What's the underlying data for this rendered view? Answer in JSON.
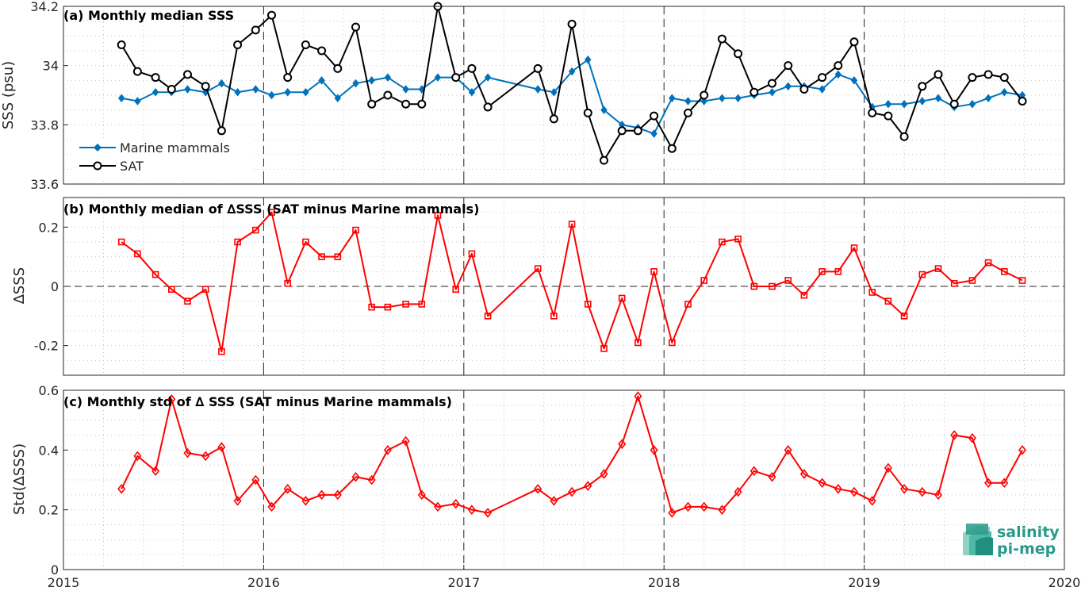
{
  "chart_data": [
    {
      "type": "line",
      "title": "(a) Monthly median SSS",
      "xlabel": "",
      "ylabel": "SSS (psu)",
      "xlim": [
        2015,
        2020
      ],
      "ylim": [
        33.6,
        34.2
      ],
      "xticks": [
        "2015",
        "2016",
        "2017",
        "2018",
        "2019",
        "2020"
      ],
      "yticks": [
        "33.6",
        "33.8",
        "34",
        "34.2"
      ],
      "grid": true,
      "legend_position": "bottom-left",
      "series": [
        {
          "name": "Marine mammals",
          "color": "#0072bd",
          "marker": "diamond",
          "x": [
            2015.29,
            2015.37,
            2015.46,
            2015.54,
            2015.62,
            2015.71,
            2015.79,
            2015.87,
            2015.96,
            2016.04,
            2016.12,
            2016.21,
            2016.29,
            2016.37,
            2016.46,
            2016.54,
            2016.62,
            2016.71,
            2016.79,
            2016.87,
            2016.96,
            2017.04,
            2017.12,
            2017.37,
            2017.45,
            2017.54,
            2017.62,
            2017.7,
            2017.79,
            2017.87,
            2017.95,
            2018.04,
            2018.12,
            2018.2,
            2018.29,
            2018.37,
            2018.45,
            2018.54,
            2018.62,
            2018.7,
            2018.79,
            2018.87,
            2018.95,
            2019.04,
            2019.12,
            2019.2,
            2019.29,
            2019.37,
            2019.45,
            2019.54,
            2019.62,
            2019.7,
            2019.79
          ],
          "y": [
            33.89,
            33.88,
            33.91,
            33.91,
            33.92,
            33.91,
            33.94,
            33.91,
            33.92,
            33.9,
            33.91,
            33.91,
            33.95,
            33.89,
            33.94,
            33.95,
            33.96,
            33.92,
            33.92,
            33.96,
            33.96,
            33.91,
            33.96,
            33.92,
            33.91,
            33.98,
            34.02,
            33.85,
            33.8,
            33.79,
            33.77,
            33.89,
            33.88,
            33.88,
            33.89,
            33.89,
            33.9,
            33.91,
            33.93,
            33.93,
            33.92,
            33.97,
            33.95,
            33.86,
            33.87,
            33.87,
            33.88,
            33.89,
            33.86,
            33.87,
            33.89,
            33.91,
            33.9
          ]
        },
        {
          "name": "SAT",
          "color": "#000000",
          "marker": "circle",
          "x": [
            2015.29,
            2015.37,
            2015.46,
            2015.54,
            2015.62,
            2015.71,
            2015.79,
            2015.87,
            2015.96,
            2016.04,
            2016.12,
            2016.21,
            2016.29,
            2016.37,
            2016.46,
            2016.54,
            2016.62,
            2016.71,
            2016.79,
            2016.87,
            2016.96,
            2017.04,
            2017.12,
            2017.37,
            2017.45,
            2017.54,
            2017.62,
            2017.7,
            2017.79,
            2017.87,
            2017.95,
            2018.04,
            2018.12,
            2018.2,
            2018.29,
            2018.37,
            2018.45,
            2018.54,
            2018.62,
            2018.7,
            2018.79,
            2018.87,
            2018.95,
            2019.04,
            2019.12,
            2019.2,
            2019.29,
            2019.37,
            2019.45,
            2019.54,
            2019.62,
            2019.7,
            2019.79
          ],
          "y": [
            34.07,
            33.98,
            33.96,
            33.92,
            33.97,
            33.93,
            33.78,
            34.07,
            34.12,
            34.17,
            33.96,
            34.07,
            34.05,
            33.99,
            34.13,
            33.87,
            33.9,
            33.87,
            33.87,
            34.2,
            33.96,
            33.99,
            33.86,
            33.99,
            33.82,
            34.14,
            33.84,
            33.68,
            33.78,
            33.78,
            33.83,
            33.72,
            33.84,
            33.9,
            34.09,
            34.04,
            33.91,
            33.94,
            34.0,
            33.92,
            33.96,
            34.0,
            34.08,
            33.84,
            33.83,
            33.76,
            33.93,
            33.97,
            33.87,
            33.96,
            33.97,
            33.96,
            33.88
          ]
        }
      ]
    },
    {
      "type": "line",
      "title": "(b) Monthly median of ∆SSS (SAT minus Marine mammals)",
      "xlabel": "",
      "ylabel": "∆SSS",
      "xlim": [
        2015,
        2020
      ],
      "ylim": [
        -0.3,
        0.3
      ],
      "yticks": [
        "-0.2",
        "0",
        "0.2"
      ],
      "grid": true,
      "series": [
        {
          "color": "#ff0000",
          "marker": "square",
          "x": [
            2015.29,
            2015.37,
            2015.46,
            2015.54,
            2015.62,
            2015.71,
            2015.79,
            2015.87,
            2015.96,
            2016.04,
            2016.12,
            2016.21,
            2016.29,
            2016.37,
            2016.46,
            2016.54,
            2016.62,
            2016.71,
            2016.79,
            2016.87,
            2016.96,
            2017.04,
            2017.12,
            2017.37,
            2017.45,
            2017.54,
            2017.62,
            2017.7,
            2017.79,
            2017.87,
            2017.95,
            2018.04,
            2018.12,
            2018.2,
            2018.29,
            2018.37,
            2018.45,
            2018.54,
            2018.62,
            2018.7,
            2018.79,
            2018.87,
            2018.95,
            2019.04,
            2019.12,
            2019.2,
            2019.29,
            2019.37,
            2019.45,
            2019.54,
            2019.62,
            2019.7,
            2019.79
          ],
          "y": [
            0.15,
            0.11,
            0.04,
            -0.01,
            -0.05,
            -0.01,
            -0.22,
            0.15,
            0.19,
            0.25,
            0.01,
            0.15,
            0.1,
            0.1,
            0.19,
            -0.07,
            -0.07,
            -0.06,
            -0.06,
            0.24,
            -0.01,
            0.11,
            -0.1,
            0.06,
            -0.1,
            0.21,
            -0.06,
            -0.21,
            -0.04,
            -0.19,
            0.05,
            -0.19,
            -0.06,
            0.02,
            0.15,
            0.16,
            0.0,
            0.0,
            0.02,
            -0.03,
            0.05,
            0.05,
            0.13,
            -0.02,
            -0.05,
            -0.1,
            0.04,
            0.06,
            0.01,
            0.02,
            0.08,
            0.05,
            0.02
          ]
        }
      ]
    },
    {
      "type": "line",
      "title": "(c) Monthly std of ∆ SSS (SAT minus Marine mammals)",
      "xlabel": "",
      "ylabel": "Std(∆SSS)",
      "xlim": [
        2015,
        2020
      ],
      "ylim": [
        0,
        0.6
      ],
      "xticks": [
        "2015",
        "2016",
        "2017",
        "2018",
        "2019",
        "2020"
      ],
      "yticks": [
        "0",
        "0.2",
        "0.4",
        "0.6"
      ],
      "grid": true,
      "series": [
        {
          "color": "#ff0000",
          "marker": "diamond",
          "x": [
            2015.29,
            2015.37,
            2015.46,
            2015.54,
            2015.62,
            2015.71,
            2015.79,
            2015.87,
            2015.96,
            2016.04,
            2016.12,
            2016.21,
            2016.29,
            2016.37,
            2016.46,
            2016.54,
            2016.62,
            2016.71,
            2016.79,
            2016.87,
            2016.96,
            2017.04,
            2017.12,
            2017.37,
            2017.45,
            2017.54,
            2017.62,
            2017.7,
            2017.79,
            2017.87,
            2017.95,
            2018.04,
            2018.12,
            2018.2,
            2018.29,
            2018.37,
            2018.45,
            2018.54,
            2018.62,
            2018.7,
            2018.79,
            2018.87,
            2018.95,
            2019.04,
            2019.12,
            2019.2,
            2019.29,
            2019.37,
            2019.45,
            2019.54,
            2019.62,
            2019.7,
            2019.79
          ],
          "y": [
            0.27,
            0.38,
            0.33,
            0.57,
            0.39,
            0.38,
            0.41,
            0.23,
            0.3,
            0.21,
            0.27,
            0.23,
            0.25,
            0.25,
            0.31,
            0.3,
            0.4,
            0.43,
            0.25,
            0.21,
            0.22,
            0.2,
            0.19,
            0.27,
            0.23,
            0.26,
            0.28,
            0.32,
            0.42,
            0.58,
            0.4,
            0.19,
            0.21,
            0.21,
            0.2,
            0.26,
            0.33,
            0.31,
            0.4,
            0.32,
            0.29,
            0.27,
            0.26,
            0.23,
            0.34,
            0.27,
            0.26,
            0.25,
            0.45,
            0.44,
            0.29,
            0.29,
            0.4
          ]
        }
      ]
    }
  ],
  "logo": {
    "line1": "salinity",
    "line2": "pi-mep",
    "color": "#2a9a8c"
  }
}
